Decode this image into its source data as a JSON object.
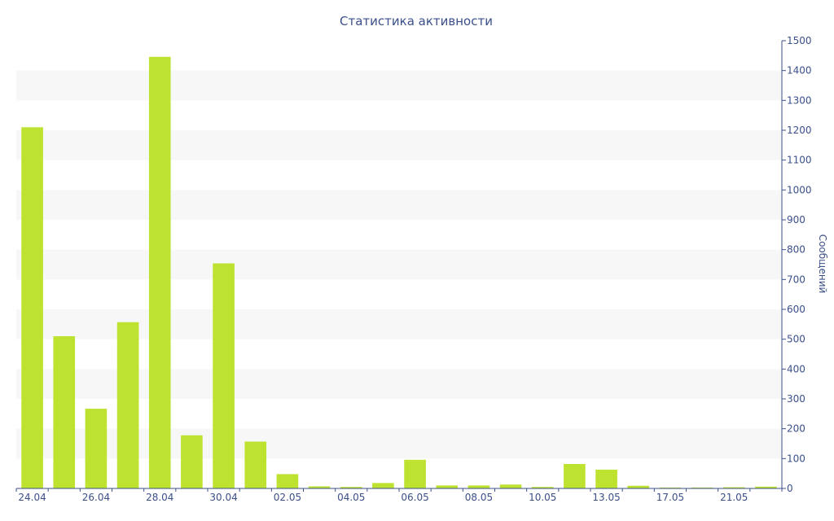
{
  "chart_data": {
    "type": "bar",
    "title": "Статистика активности",
    "ylabel": "Сообщений",
    "xlabel": "",
    "ylim": [
      0,
      1500
    ],
    "yticks": [
      0,
      100,
      200,
      300,
      400,
      500,
      600,
      700,
      800,
      900,
      1000,
      1100,
      1200,
      1300,
      1400,
      1500
    ],
    "categories": [
      "24.04",
      "25.04",
      "26.04",
      "27.04",
      "28.04",
      "29.04",
      "30.04",
      "01.05",
      "02.05",
      "03.05",
      "04.05",
      "05.05",
      "06.05",
      "07.05",
      "08.05",
      "09.05",
      "10.05",
      "12.05",
      "13.05",
      "16.05",
      "17.05",
      "20.05",
      "21.05",
      "22.05"
    ],
    "xtick_labels": [
      "24.04",
      "26.04",
      "28.04",
      "30.04",
      "02.05",
      "04.05",
      "06.05",
      "08.05",
      "10.05",
      "13.05",
      "17.05",
      "21.05"
    ],
    "values": [
      1210,
      510,
      267,
      557,
      1446,
      178,
      754,
      157,
      48,
      7,
      5,
      18,
      96,
      10,
      10,
      13,
      5,
      82,
      63,
      9,
      3,
      3,
      4,
      6
    ],
    "grid": "horizontal-bands",
    "y_axis_position": "right",
    "legend": "none",
    "colors": {
      "bar": "#bde22f",
      "band": "#f7f7f7",
      "text": "#3b4f8a",
      "axis": "#3b4f8a"
    }
  }
}
